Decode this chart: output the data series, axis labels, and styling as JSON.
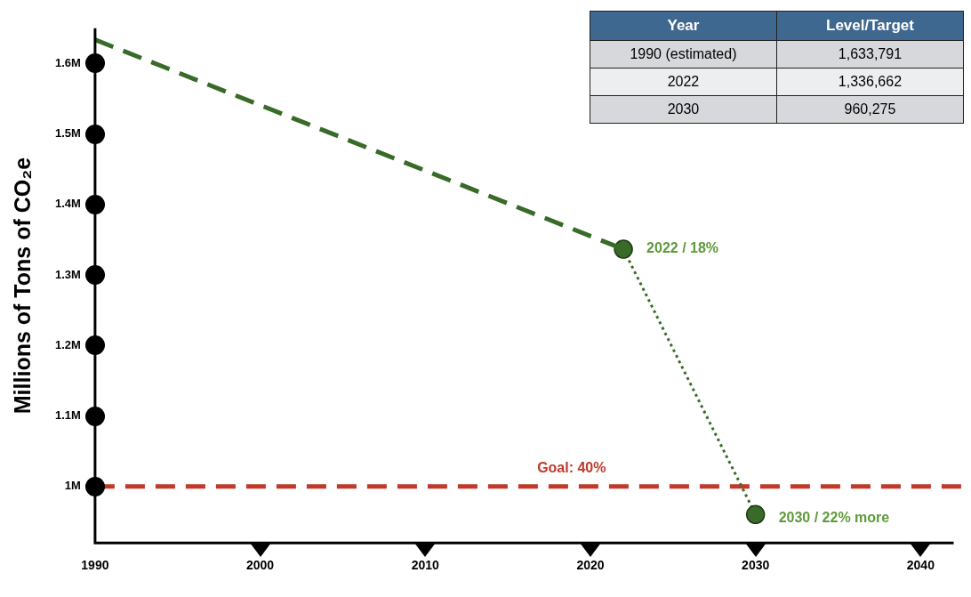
{
  "chart_data": {
    "type": "line",
    "ylabel": "Millions of Tons of CO₂e",
    "xlim": [
      1990,
      2042
    ],
    "xticks": [
      1990,
      2000,
      2010,
      2020,
      2030,
      2040
    ],
    "ylim": [
      920000,
      1650000
    ],
    "yticks": [
      {
        "value": 1000000,
        "label": "1M"
      },
      {
        "value": 1100000,
        "label": "1.1M"
      },
      {
        "value": 1200000,
        "label": "1.2M"
      },
      {
        "value": 1300000,
        "label": "1.3M"
      },
      {
        "value": 1400000,
        "label": "1.4M"
      },
      {
        "value": 1500000,
        "label": "1.5M"
      },
      {
        "value": 1600000,
        "label": "1.6M"
      }
    ],
    "series": [
      {
        "color": "#386a28",
        "x": [
          1990,
          2022
        ],
        "values": [
          1633791,
          1336662
        ],
        "line_style": "dashed"
      },
      {
        "color": "#386a28",
        "x": [
          2022,
          2030
        ],
        "values": [
          1336662,
          960275
        ],
        "line_style": "dotted",
        "marker": "circle"
      }
    ],
    "ref_lines": [
      {
        "axis": "y",
        "value": 1000000,
        "color": "#c0392b",
        "line_style": "dashed"
      }
    ],
    "annotations": [
      "Year",
      "Level/Target",
      "1990 (estimated)",
      "1,633,791",
      "2022",
      "1,336,662",
      "2030",
      "960,275",
      {
        "text": "Goal: 40%",
        "y": 1000000
      },
      {
        "text": "2022 / 18%",
        "x": 2022,
        "y": 1336662
      },
      {
        "text": "2030 / 22% more",
        "x": 2030,
        "y": 960275
      }
    ],
    "grid": false,
    "legend": false
  }
}
